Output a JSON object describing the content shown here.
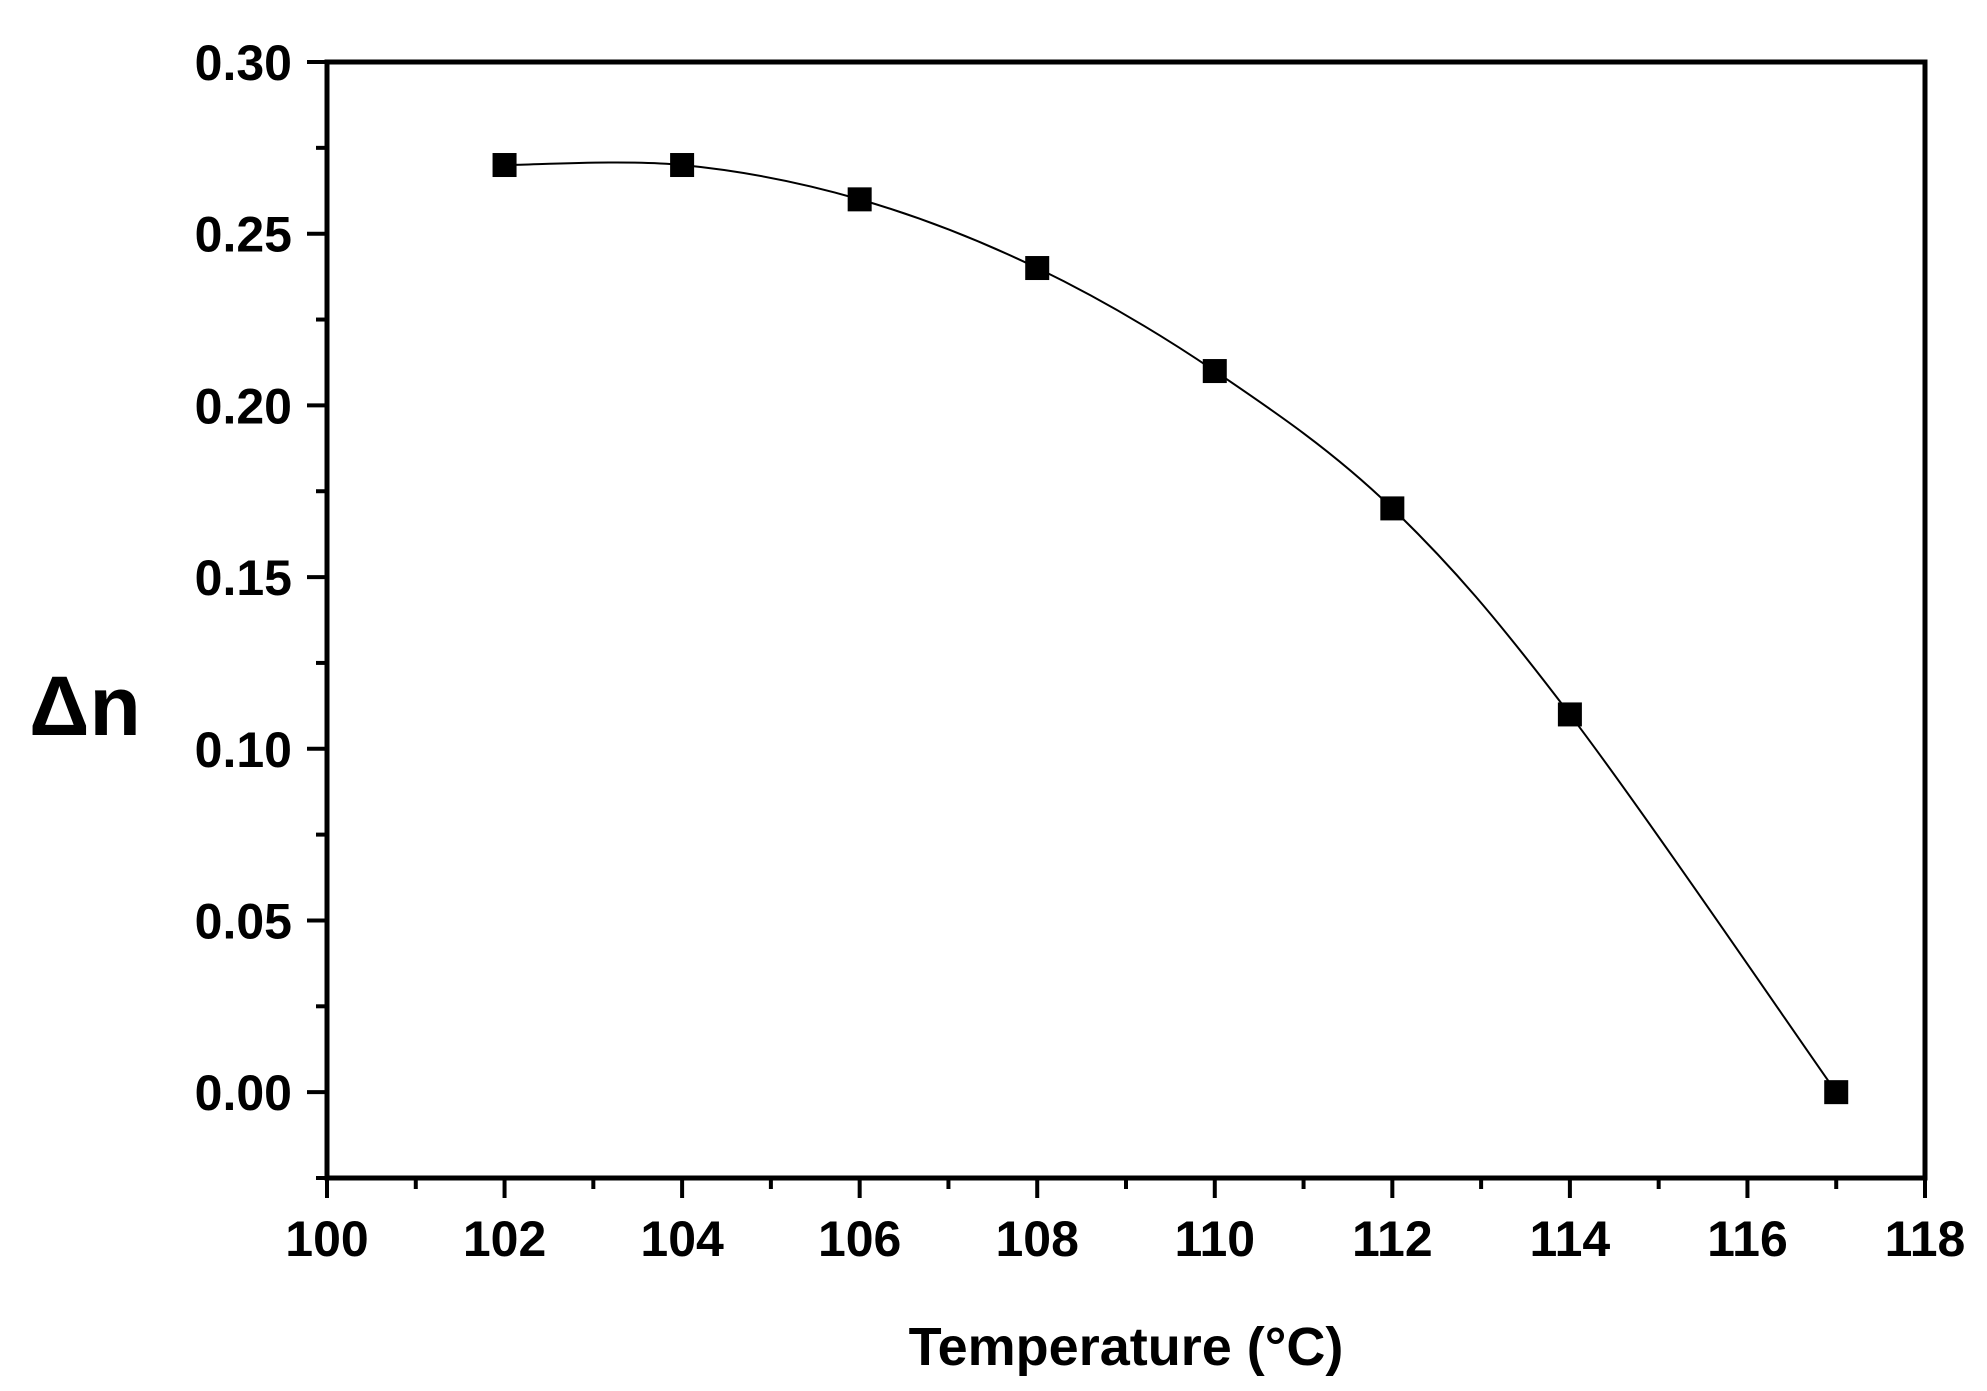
{
  "chart_data": {
    "type": "line",
    "title": "",
    "xlabel": "Temperature (°C)",
    "ylabel": "Δn",
    "xlim": [
      100,
      118
    ],
    "ylim": [
      -0.025,
      0.3
    ],
    "x_ticks": [
      100,
      102,
      104,
      106,
      108,
      110,
      112,
      114,
      116,
      118
    ],
    "x_tick_labels": [
      "100",
      "102",
      "104",
      "106",
      "108",
      "110",
      "112",
      "114",
      "116",
      "118"
    ],
    "y_ticks": [
      0.0,
      0.05,
      0.1,
      0.15,
      0.2,
      0.25,
      0.3
    ],
    "y_tick_labels": [
      "0.00",
      "0.05",
      "0.10",
      "0.15",
      "0.20",
      "0.25",
      "0.30"
    ],
    "grid": false,
    "legend": "none",
    "marker": "square",
    "line_style": "smooth",
    "colors": {
      "line": "#000000",
      "marker": "#000000",
      "axis": "#000000"
    },
    "series": [
      {
        "x": [
          102,
          104,
          106,
          108,
          110,
          112,
          114,
          117
        ],
        "y": [
          0.27,
          0.27,
          0.26,
          0.24,
          0.21,
          0.17,
          0.11,
          0.0
        ]
      }
    ]
  }
}
